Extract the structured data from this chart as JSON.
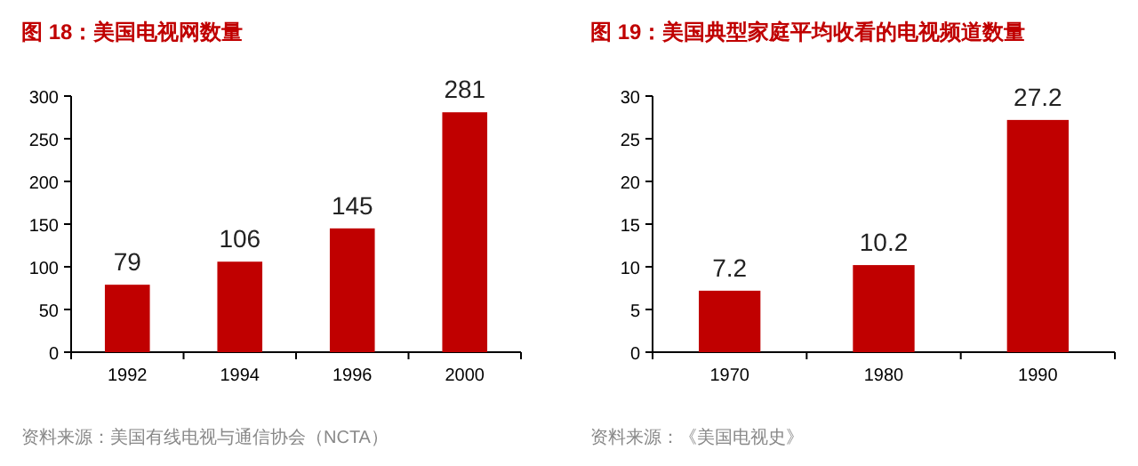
{
  "chart_data": [
    {
      "type": "bar",
      "title": "图 18：美国电视网数量",
      "categories": [
        "1992",
        "1994",
        "1996",
        "2000"
      ],
      "values": [
        79,
        106,
        145,
        281
      ],
      "color": "#c00000",
      "ylim": [
        0,
        300
      ],
      "yticks": [
        0,
        50,
        100,
        150,
        200,
        250,
        300
      ],
      "data_labels": true,
      "grid": false,
      "annotations": [
        "资料来源：美国有线电视与通信协会（NCTA）"
      ]
    },
    {
      "type": "bar",
      "title": "图 19：美国典型家庭平均收看的电视频道数量",
      "categories": [
        "1970",
        "1980",
        "1990"
      ],
      "values": [
        7.2,
        10.2,
        27.2
      ],
      "color": "#c00000",
      "ylim": [
        0,
        30
      ],
      "yticks": [
        0,
        5,
        10,
        15,
        20,
        25,
        30
      ],
      "data_labels": true,
      "grid": false,
      "annotations": [
        "资料来源：《美国电视史》"
      ]
    }
  ]
}
